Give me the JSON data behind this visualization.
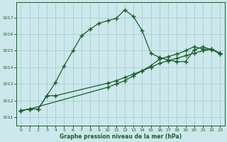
{
  "title": "Graphe pression niveau de la mer (hPa)",
  "background_color": "#cce8ec",
  "grid_color": "#aacdd4",
  "line_color": "#1a5e28",
  "xlim": [
    -0.5,
    23.5
  ],
  "ylim": [
    1010.5,
    1017.9
  ],
  "yticks": [
    1011,
    1012,
    1013,
    1014,
    1015,
    1016,
    1017
  ],
  "xticks": [
    0,
    1,
    2,
    3,
    4,
    5,
    6,
    7,
    8,
    9,
    10,
    11,
    12,
    13,
    14,
    15,
    16,
    17,
    18,
    19,
    20,
    21,
    22,
    23
  ],
  "series": [
    {
      "x": [
        0,
        1,
        2,
        3,
        4,
        5,
        6,
        7,
        8,
        9,
        10,
        11,
        12,
        13,
        14,
        15,
        16
      ],
      "y": [
        1011.4,
        1011.5,
        1011.5,
        1012.3,
        1013.1,
        1014.1,
        1015.0,
        1015.9,
        1016.3,
        1016.65,
        1016.8,
        1016.95,
        1017.45,
        1017.05,
        1016.2,
        1014.85,
        1014.6
      ]
    },
    {
      "x": [
        0,
        1,
        2,
        3,
        4,
        10,
        11,
        12,
        13,
        14,
        15,
        16,
        17,
        18,
        19,
        20,
        21,
        22,
        23
      ],
      "y": [
        1011.4,
        1011.5,
        1011.5,
        1012.3,
        1012.3,
        1013.05,
        1013.2,
        1013.4,
        1013.6,
        1013.8,
        1014.0,
        1014.25,
        1014.4,
        1014.55,
        1014.7,
        1014.85,
        1015.0,
        1015.1,
        1014.8
      ]
    },
    {
      "x": [
        0,
        1,
        10,
        11,
        12,
        13,
        14,
        15,
        16,
        17,
        18,
        19,
        20,
        21,
        22,
        23
      ],
      "y": [
        1011.4,
        1011.5,
        1012.8,
        1013.0,
        1013.2,
        1013.5,
        1013.8,
        1014.1,
        1014.5,
        1014.65,
        1014.8,
        1015.0,
        1015.25,
        1015.1,
        1015.1,
        1014.85
      ]
    },
    {
      "x": [
        16,
        17,
        18,
        19,
        20,
        21,
        22,
        23
      ],
      "y": [
        1014.6,
        1014.45,
        1014.35,
        1014.35,
        1015.05,
        1015.25,
        1015.05,
        1014.85
      ]
    }
  ]
}
